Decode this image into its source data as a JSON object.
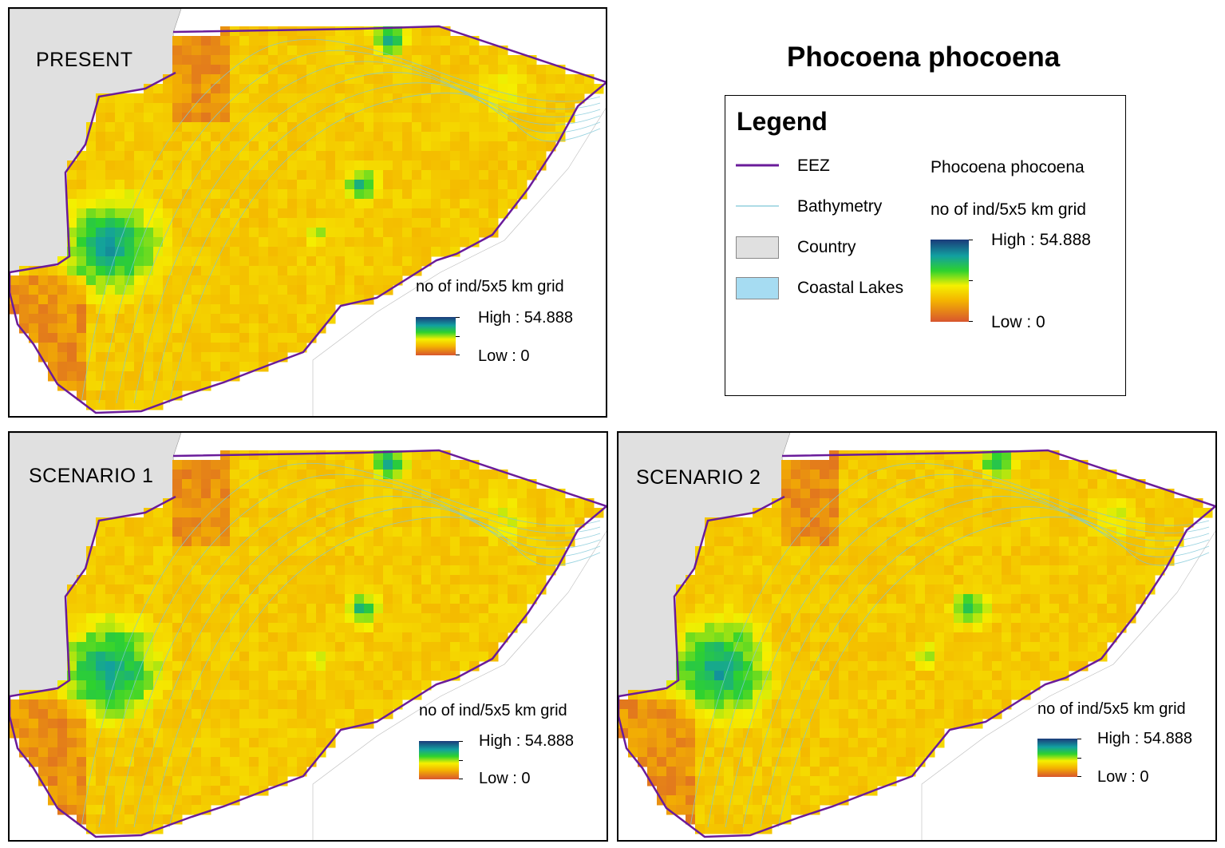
{
  "main_title": "Phocoena phocoena",
  "colors": {
    "eez": "#6a1b9a",
    "bathymetry": "#7ec8d8",
    "country": "#e0e0e0",
    "coastal_lakes": "#a6dcf2",
    "ramp_high": "#1b3a7a",
    "ramp_mid": "#2ed22e",
    "ramp_low": "#d8552e"
  },
  "legend": {
    "title": "Legend",
    "items": [
      {
        "label": "EEZ",
        "symbol": "line-purple"
      },
      {
        "label": "Bathymetry",
        "symbol": "line-lightblue"
      },
      {
        "label": "Country",
        "symbol": "box-gray"
      },
      {
        "label": "Coastal Lakes",
        "symbol": "box-lightblue"
      }
    ],
    "species": "Phocoena phocoena",
    "unit": "no of ind/5x5 km grid",
    "high": "High : 54.888",
    "low": "Low : 0"
  },
  "panels": [
    {
      "title": "PRESENT",
      "unit": "no of ind/5x5 km grid",
      "high": "High : 54.888",
      "low": "Low : 0"
    },
    {
      "title": "SCENARIO 1",
      "unit": "no of ind/5x5 km grid",
      "high": "High : 54.888",
      "low": "Low : 0"
    },
    {
      "title": "SCENARIO 2",
      "unit": "no of ind/5x5 km grid",
      "high": "High : 54.888",
      "low": "Low : 0"
    }
  ]
}
